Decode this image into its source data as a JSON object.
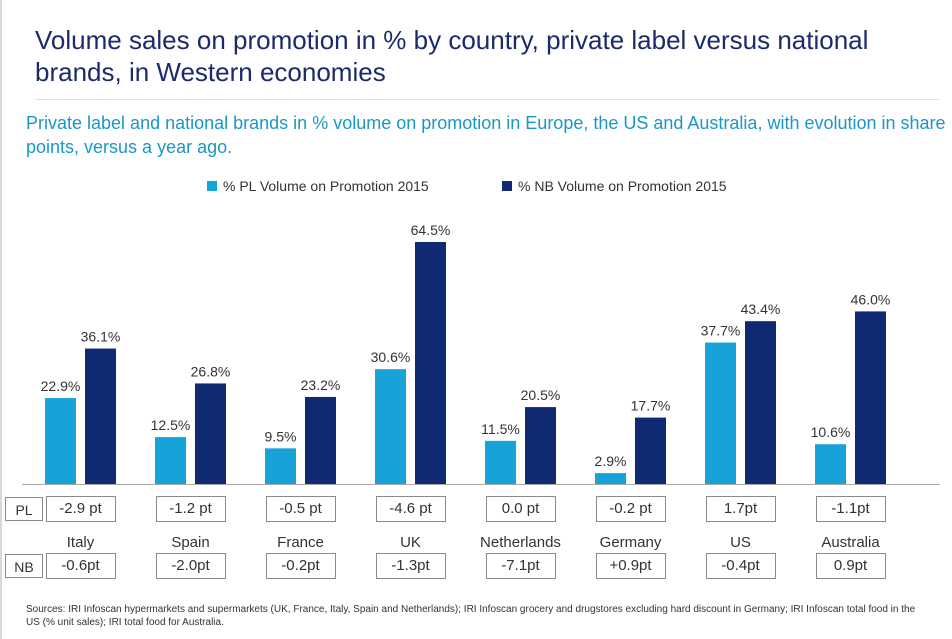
{
  "title": "Volume sales on promotion in % by country, private label versus national brands, in Western economies",
  "subtitle": "Private label and national brands in % volume on promotion in Europe, the US and Australia, with evolution in share points, versus a year ago.",
  "row_labels": {
    "pl": "PL",
    "nb": "NB"
  },
  "sources": "Sources: IRI Infoscan hypermarkets and supermarkets (UK, France, Italy, Spain and Netherlands); IRI Infoscan grocery and drugstores excluding hard discount in Germany; IRI Infoscan total food in the US (% unit sales); IRI total food for Australia.",
  "colors": {
    "pl": "#17a2d8",
    "nb": "#0f2a72",
    "axis": "#aaaaaa"
  },
  "chart_data": {
    "type": "bar",
    "categories": [
      "Italy",
      "Spain",
      "France",
      "UK",
      "Netherlands",
      "Germany",
      "US",
      "Australia"
    ],
    "series": [
      {
        "name": "% PL Volume on Promotion 2015",
        "values": [
          22.9,
          12.5,
          9.5,
          30.6,
          11.5,
          2.9,
          37.7,
          10.6
        ],
        "labels": [
          "22.9%",
          "12.5%",
          "9.5%",
          "30.6%",
          "11.5%",
          "2.9%",
          "37.7%",
          "10.6%"
        ]
      },
      {
        "name": "% NB Volume on Promotion 2015",
        "values": [
          36.1,
          26.8,
          23.2,
          64.5,
          20.5,
          17.7,
          43.4,
          46.0
        ],
        "labels": [
          "36.1%",
          "26.8%",
          "23.2%",
          "64.5%",
          "20.5%",
          "17.7%",
          "43.4%",
          "46.0%"
        ]
      }
    ],
    "pl_change": [
      "-2.9 pt",
      "-1.2 pt",
      "-0.5 pt",
      "-4.6 pt",
      "0.0 pt",
      "-0.2 pt",
      "1.7pt",
      "-1.1pt"
    ],
    "nb_change": [
      "-0.6pt",
      "-2.0pt",
      "-0.2pt",
      "-1.3pt",
      "-7.1pt",
      "+0.9pt",
      "-0.4pt",
      "0.9pt"
    ],
    "ylim": [
      0,
      66
    ],
    "legend": "top-center",
    "grid": false
  }
}
